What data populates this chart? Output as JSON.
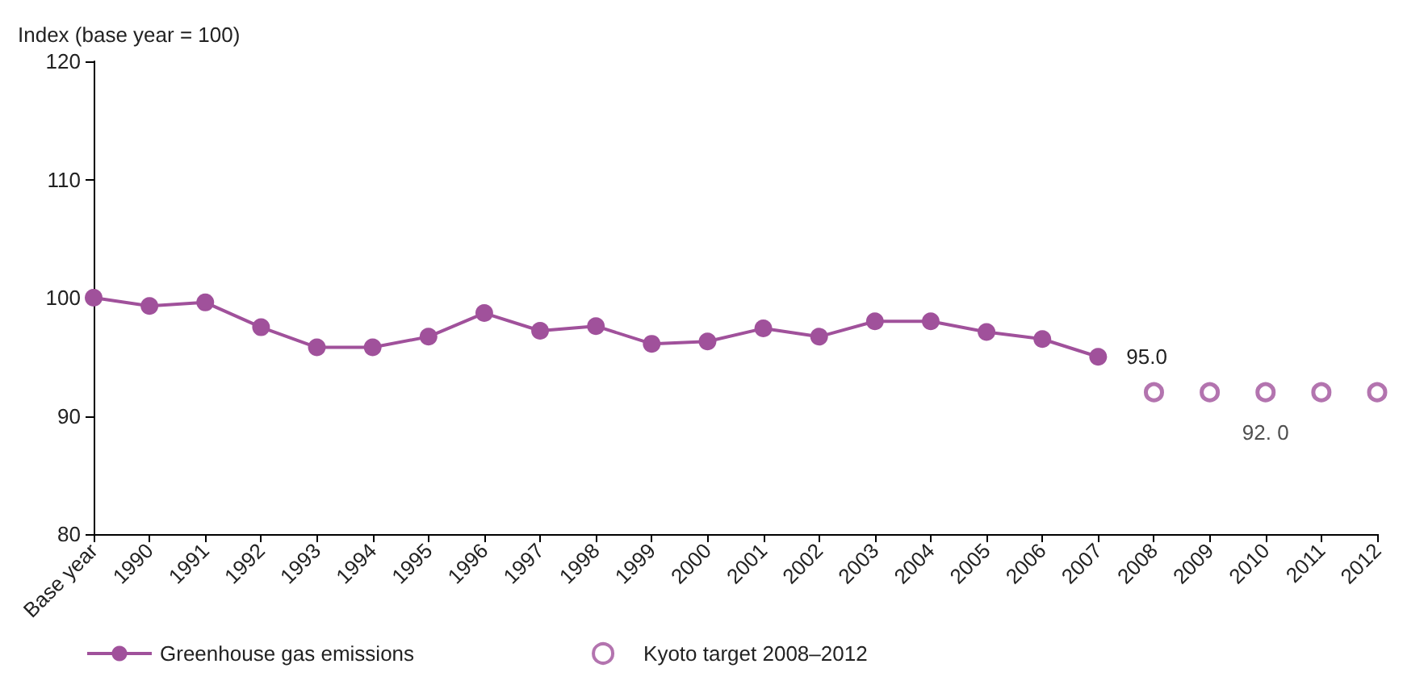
{
  "chart_data": {
    "type": "line",
    "ylabel": "Index (base year = 100)",
    "categories": [
      "Base year",
      "1990",
      "1991",
      "1992",
      "1993",
      "1994",
      "1995",
      "1996",
      "1997",
      "1998",
      "1999",
      "2000",
      "2001",
      "2002",
      "2003",
      "2004",
      "2005",
      "2006",
      "2007",
      "2008",
      "2009",
      "2010",
      "2011",
      "2012"
    ],
    "series": [
      {
        "name": "Greenhouse gas emissions",
        "color": "#a0519b",
        "marker": "circle",
        "values": [
          100.0,
          99.3,
          99.6,
          97.5,
          95.8,
          95.8,
          96.7,
          98.7,
          97.2,
          97.6,
          96.1,
          96.3,
          97.4,
          96.7,
          98.0,
          98.0,
          97.1,
          96.5,
          95.0,
          null,
          null,
          null,
          null,
          null
        ],
        "value_labels": [
          null,
          null,
          null,
          null,
          null,
          null,
          null,
          null,
          null,
          null,
          null,
          null,
          null,
          null,
          null,
          null,
          null,
          null,
          "95.0",
          null,
          null,
          null,
          null,
          null
        ]
      },
      {
        "name": "Kyoto target 2008–2012",
        "type": "scatter",
        "color": "#a0519b",
        "marker": "circle",
        "values": [
          null,
          null,
          null,
          null,
          null,
          null,
          null,
          null,
          null,
          null,
          null,
          null,
          null,
          null,
          null,
          null,
          null,
          null,
          null,
          92.0,
          92.0,
          92.0,
          92.0,
          92.0
        ],
        "value_labels": [
          null,
          null,
          null,
          null,
          null,
          null,
          null,
          null,
          null,
          null,
          null,
          null,
          null,
          null,
          null,
          null,
          null,
          null,
          null,
          null,
          null,
          "92. 0",
          null,
          null
        ]
      }
    ],
    "ylim": [
      80,
      120
    ],
    "yticks": [
      80,
      90,
      100,
      110,
      120
    ],
    "grid": false,
    "legend": "bottom"
  }
}
